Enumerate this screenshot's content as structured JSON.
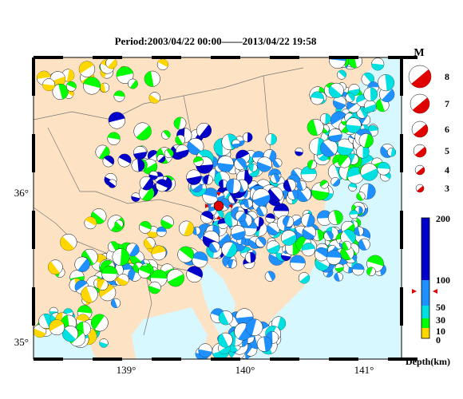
{
  "title": "Period:2003/04/22 00:00——2013/04/22 19:58",
  "axes": {
    "x_ticks": [
      "139°",
      "140°",
      "141°"
    ],
    "y_ticks": [
      "36°",
      "35°"
    ]
  },
  "magnitude_legend": {
    "header": "M",
    "values": [
      "8",
      "7",
      "6",
      "5",
      "4",
      "3"
    ]
  },
  "depth_legend": {
    "labels": [
      "200",
      "100",
      "50",
      "30",
      "10",
      "0"
    ],
    "title": "Depth(km)",
    "colors": {
      "shallow": "#ffd700",
      "mid1": "#00ff00",
      "mid2": "#00e0e0",
      "mid3": "#1e90ff",
      "deep": "#0000c8"
    }
  },
  "colors": {
    "land": "#fde3c3",
    "sea": "#d8f8ff",
    "event_marker": "#e00000"
  }
}
